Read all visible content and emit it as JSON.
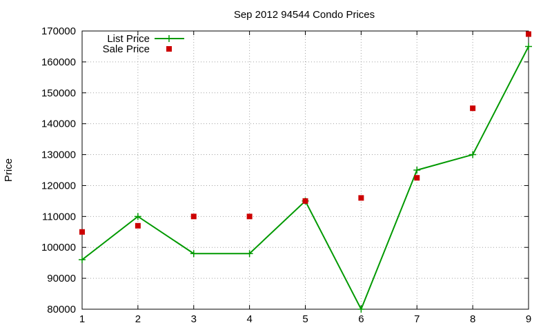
{
  "chart_data": {
    "type": "line",
    "title": "Sep 2012 94544 Condo Prices",
    "xlabel": "",
    "ylabel": "Price",
    "x": [
      1,
      2,
      3,
      4,
      5,
      6,
      7,
      8,
      9
    ],
    "xlim": [
      1,
      9
    ],
    "ylim": [
      80000,
      170000
    ],
    "xticks": [
      "1",
      "2",
      "3",
      "4",
      "5",
      "6",
      "7",
      "8",
      "9"
    ],
    "yticks": [
      "80000",
      "90000",
      "100000",
      "110000",
      "120000",
      "130000",
      "140000",
      "150000",
      "160000",
      "170000"
    ],
    "grid": true,
    "legend_position": "top-left",
    "series": [
      {
        "name": "List Price",
        "style": "line-with-plus-markers",
        "color": "#009900",
        "values": [
          96000,
          110000,
          98000,
          98000,
          115000,
          80000,
          125000,
          130000,
          165000
        ]
      },
      {
        "name": "Sale Price",
        "style": "square-points",
        "color": "#cc0000",
        "values": [
          105000,
          107000,
          110000,
          110000,
          115000,
          116000,
          122500,
          145000,
          169000
        ]
      }
    ]
  }
}
